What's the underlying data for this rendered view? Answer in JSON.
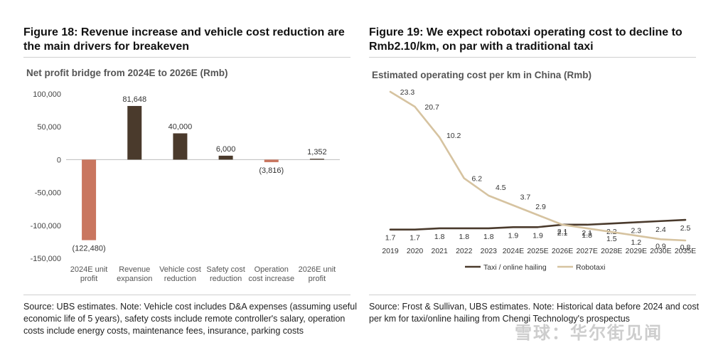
{
  "left": {
    "figure_title": "Figure 18: Revenue increase and vehicle cost reduction are the main drivers for breakeven",
    "source": "Source: UBS estimates. Note: Vehicle cost includes D&A expenses (assuming useful economic life of 5 years), safety costs include remote controller's salary, operation costs include energy costs, maintenance fees, insurance, parking costs"
  },
  "right": {
    "figure_title": "Figure 19: We expect robotaxi operating cost to decline to Rmb2.10/km, on par with a traditional taxi",
    "source": "Source: Frost & Sullivan, UBS estimates. Note: Historical data before 2024 and cost per km for taxi/online hailing from Chengi Technology's prospectus"
  },
  "watermark": "雪球：华尔街见闻",
  "chart_data": [
    {
      "type": "bar",
      "title": "Net profit bridge from 2024E to 2026E (Rmb)",
      "categories": [
        [
          "2024E unit",
          "profit"
        ],
        [
          "Revenue",
          "expansion"
        ],
        [
          "Vehicle cost",
          "reduction"
        ],
        [
          "Safety cost",
          "reduction"
        ],
        [
          "Operation",
          "cost increase"
        ],
        [
          "2026E unit",
          "profit"
        ]
      ],
      "values": [
        -122480,
        81648,
        40000,
        6000,
        -3816,
        1352
      ],
      "value_labels": [
        "(122,480)",
        "81,648",
        "40,000",
        "6,000",
        "(3,816)",
        "1,352"
      ],
      "colors": [
        "#c9765f",
        "#4a3a2c",
        "#4a3a2c",
        "#4a3a2c",
        "#c9765f",
        "#4a3a2c"
      ],
      "ylim": [
        -150000,
        100000
      ],
      "yticks": [
        100000,
        50000,
        0,
        -50000,
        -100000,
        -150000
      ],
      "ytick_labels": [
        "100,000",
        "50,000",
        "0",
        "-50,000",
        "-100,000",
        "-150,000"
      ]
    },
    {
      "type": "line",
      "title": "Estimated operating cost per km in China (Rmb)",
      "x": [
        "2019",
        "2020",
        "2021",
        "2022",
        "2023",
        "2024E",
        "2025E",
        "2026E",
        "2027E",
        "2028E",
        "2029E",
        "2030E",
        "2035E"
      ],
      "series": [
        {
          "name": "Taxi / online hailing",
          "color": "#4a3a2c",
          "values": [
            1.7,
            1.7,
            1.8,
            1.8,
            1.8,
            1.9,
            1.9,
            2.1,
            2.1,
            2.2,
            2.3,
            2.4,
            2.5
          ],
          "labels": [
            "1.7",
            "1.7",
            "1.8",
            "1.8",
            "1.8",
            "1.9",
            "1.9",
            "2.1",
            "2.1",
            "2.2",
            "2.3",
            "2.4",
            "2.5"
          ]
        },
        {
          "name": "Robotaxi",
          "color": "#d6c3a0",
          "values": [
            23.3,
            20.7,
            10.2,
            6.2,
            4.5,
            3.7,
            2.9,
            2.1,
            1.8,
            1.5,
            1.2,
            0.9,
            0.8
          ],
          "labels": [
            "23.3",
            "20.7",
            "10.2",
            "6.2",
            "4.5",
            "3.7",
            "2.9",
            "2.1",
            "1.8",
            "1.5",
            "1.2",
            "0.9",
            "0.8"
          ]
        }
      ],
      "legend_position": "bottom"
    }
  ]
}
